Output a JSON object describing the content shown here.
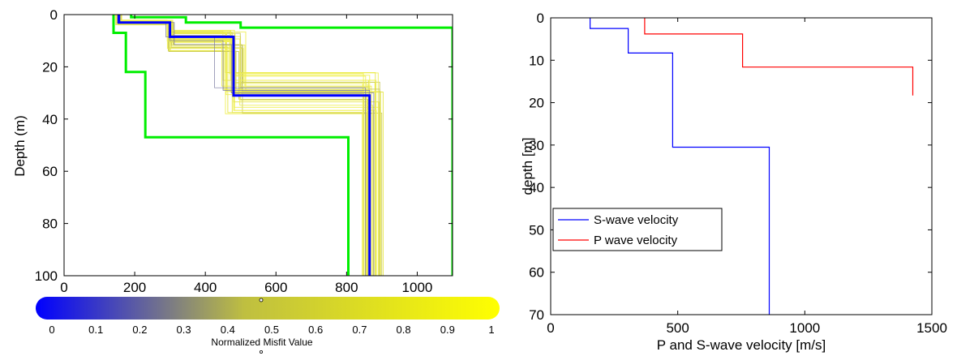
{
  "chart_data": [
    {
      "type": "line",
      "ylabel": "Depth (m)",
      "xlim": [
        0,
        1100
      ],
      "ylim": [
        100,
        0
      ],
      "xticks": [
        0,
        200,
        400,
        600,
        800,
        1000
      ],
      "yticks": [
        0,
        20,
        40,
        60,
        80,
        100
      ],
      "grid": false,
      "best_model": {
        "color": "#0000ff",
        "points": [
          [
            155,
            0
          ],
          [
            155,
            3
          ],
          [
            300,
            3
          ],
          [
            300,
            8.5
          ],
          [
            480,
            8.5
          ],
          [
            480,
            31
          ],
          [
            865,
            31
          ],
          [
            865,
            100
          ]
        ]
      },
      "search_bounds": {
        "color": "#00ee00",
        "lower": [
          [
            140,
            0
          ],
          [
            140,
            7
          ],
          [
            175,
            7
          ],
          [
            175,
            22
          ],
          [
            230,
            22
          ],
          [
            230,
            47
          ],
          [
            805,
            47
          ],
          [
            805,
            100
          ]
        ],
        "upper": [
          [
            190,
            0
          ],
          [
            190,
            1
          ],
          [
            345,
            1
          ],
          [
            345,
            3
          ],
          [
            500,
            3
          ],
          [
            500,
            5
          ],
          [
            1100,
            5
          ],
          [
            1100,
            100
          ]
        ]
      },
      "colorbar": {
        "label": "Normalized Misfit Value",
        "ticks": [
          0,
          0.1,
          0.2,
          0.3,
          0.4,
          0.5,
          0.6,
          0.7,
          0.8,
          0.9,
          1
        ],
        "tick_labels": [
          "0",
          "0.1",
          "0.2",
          "0.3",
          "0.4",
          "0.5",
          "0.6",
          "0.7",
          "0.8",
          "0.9",
          "1"
        ],
        "colors": [
          "#0000ff",
          "#bfbf40",
          "#ffff00"
        ]
      }
    },
    {
      "type": "line",
      "xlabel": "P and S-wave velocity [m/s]",
      "ylabel": "depth [m]",
      "xlim": [
        0,
        1500
      ],
      "ylim": [
        70,
        0
      ],
      "xticks": [
        0,
        500,
        1000,
        1500
      ],
      "yticks": [
        0,
        10,
        20,
        30,
        40,
        50,
        60,
        70
      ],
      "grid": false,
      "legend_position": "middle-left",
      "series": [
        {
          "name": "S-wave velocity",
          "color": "#0000ff",
          "points": [
            [
              155,
              0
            ],
            [
              155,
              2.5
            ],
            [
              305,
              2.5
            ],
            [
              305,
              8.3
            ],
            [
              480,
              8.3
            ],
            [
              480,
              30.5
            ],
            [
              860,
              30.5
            ],
            [
              860,
              70
            ]
          ]
        },
        {
          "name": "P wave velocity",
          "color": "#ff0000",
          "points": [
            [
              370,
              0
            ],
            [
              370,
              3.8
            ],
            [
              755,
              3.8
            ],
            [
              755,
              11.6
            ],
            [
              1425,
              11.6
            ],
            [
              1425,
              18.3
            ]
          ]
        }
      ]
    }
  ]
}
